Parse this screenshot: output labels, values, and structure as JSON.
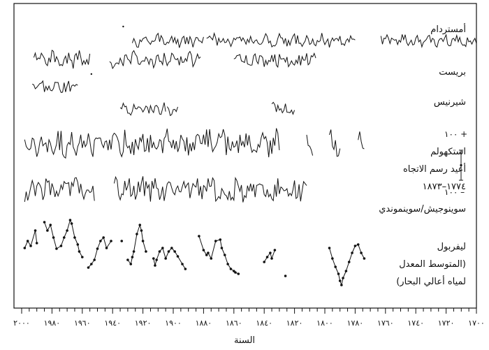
{
  "chart_data": {
    "type": "line",
    "title": "",
    "xlabel": "السنة",
    "ylabel": "",
    "xlim": [
      2000,
      1700
    ],
    "x_ticks": [
      2000,
      1980,
      1960,
      1940,
      1920,
      1900,
      1880,
      1860,
      1840,
      1820,
      1800,
      1780,
      1760,
      1740,
      1720,
      1700
    ],
    "x_tick_labels": [
      "٢٠٠٠",
      "١٩٨٠",
      "١٩٦٠",
      "١٩٤٠",
      "١٩٢٠",
      "١٩٠٠",
      "١٨٨٠",
      "١٨٦٠",
      "١٨٤٠",
      "١٨٢٠",
      "١٨٠٠",
      "١٧٨٠",
      "١٧٦٠",
      "١٧٤٠",
      "١٧٢٠",
      "١٧٠٠"
    ],
    "scale_bar": {
      "top_label": "+ ١٠٠",
      "bottom_label": "– ١٠٠",
      "range": [
        -100,
        100
      ]
    },
    "grid": false,
    "series": [
      {
        "name": "أمستردام",
        "label_lines": [
          "أمستردام"
        ],
        "style": "line",
        "amp": 8,
        "segments": [
          [
            1700,
            1763
          ],
          [
            1780,
            1878
          ],
          [
            1880,
            1927
          ]
        ],
        "isolated_points": [
          1933
        ]
      },
      {
        "name": "بريست",
        "label_lines": [
          "بريست"
        ],
        "style": "line",
        "amp": 10,
        "segments": [
          [
            1806,
            1860
          ],
          [
            1882,
            1942
          ],
          [
            1955,
            1992
          ]
        ],
        "isolated_points": []
      },
      {
        "name": "شيرنيس",
        "label_lines": [
          "شيرنيس"
        ],
        "style": "line",
        "amp": 9,
        "segments": [
          [
            1963,
            1993
          ]
        ],
        "isolated_points": [
          1954
        ]
      },
      {
        "name": "شيرنيس-2",
        "label_lines": [],
        "style": "line",
        "amp": 8,
        "segments": [
          [
            1905,
            1935
          ],
          [
            1897,
            1904
          ],
          [
            1820,
            1835
          ]
        ],
        "isolated_points": []
      },
      {
        "name": "استكهولم",
        "label_lines": [
          "استكهولم",
          "أعيد رسم الاتجاه",
          "١٧٧٤–١٨٧٣"
        ],
        "style": "line",
        "amp": 16,
        "segments": [
          [
            1830,
            1998
          ],
          [
            1808,
            1812
          ],
          [
            1790,
            1797
          ],
          [
            1774,
            1778
          ]
        ],
        "isolated_points": []
      },
      {
        "name": "سوينوجيش/سوينموندي",
        "label_lines": [
          "سوينوجيش/سوينموندي"
        ],
        "style": "line",
        "amp": 15,
        "segments": [
          [
            1812,
            1939
          ],
          [
            1952,
            1998
          ]
        ],
        "isolated_points": []
      },
      {
        "name": "ليفربول",
        "label_lines": [
          "ليفربول",
          "(المتوسط المعدل",
          "لمياه أعالي البحار)"
        ],
        "style": "dots",
        "amp": 0,
        "segments": [],
        "points": [
          [
            1998,
            355
          ],
          [
            1996,
            345
          ],
          [
            1994,
            352
          ],
          [
            1991,
            330
          ],
          [
            1990,
            348
          ],
          [
            1985,
            318
          ],
          [
            1983,
            330
          ],
          [
            1981,
            322
          ],
          [
            1979,
            340
          ],
          [
            1977,
            356
          ],
          [
            1974,
            352
          ],
          [
            1972,
            340
          ],
          [
            1970,
            330
          ],
          [
            1968,
            315
          ],
          [
            1967,
            320
          ],
          [
            1965,
            340
          ],
          [
            1963,
            350
          ],
          [
            1962,
            360
          ],
          [
            1960,
            368
          ],
          [
            1956,
            383
          ],
          [
            1954,
            378
          ],
          [
            1952,
            372
          ],
          [
            1950,
            356
          ],
          [
            1948,
            345
          ],
          [
            1946,
            340
          ],
          [
            1944,
            355
          ],
          [
            1941,
            345
          ],
          [
            1934,
            345
          ],
          [
            1930,
            372
          ],
          [
            1928,
            378
          ],
          [
            1927,
            368
          ],
          [
            1926,
            360
          ],
          [
            1924,
            335
          ],
          [
            1922,
            322
          ],
          [
            1921,
            330
          ],
          [
            1920,
            345
          ],
          [
            1918,
            360
          ],
          [
            1913,
            370
          ],
          [
            1912,
            380
          ],
          [
            1911,
            372
          ],
          [
            1909,
            360
          ],
          [
            1907,
            355
          ],
          [
            1905,
            370
          ],
          [
            1903,
            360
          ],
          [
            1901,
            355
          ],
          [
            1899,
            360
          ],
          [
            1897,
            367
          ],
          [
            1894,
            378
          ],
          [
            1892,
            385
          ],
          [
            1883,
            338
          ],
          [
            1880,
            358
          ],
          [
            1878,
            365
          ],
          [
            1877,
            362
          ],
          [
            1875,
            370
          ],
          [
            1872,
            345
          ],
          [
            1869,
            343
          ],
          [
            1868,
            355
          ],
          [
            1866,
            365
          ],
          [
            1864,
            378
          ],
          [
            1862,
            385
          ],
          [
            1860,
            388
          ],
          [
            1859,
            390
          ],
          [
            1857,
            392
          ],
          [
            1840,
            375
          ],
          [
            1838,
            368
          ],
          [
            1836,
            362
          ],
          [
            1835,
            370
          ],
          [
            1833,
            358
          ],
          [
            1826,
            395
          ],
          [
            1797,
            355
          ],
          [
            1795,
            370
          ],
          [
            1793,
            382
          ],
          [
            1791,
            392
          ],
          [
            1790,
            402
          ],
          [
            1789,
            408
          ],
          [
            1788,
            398
          ],
          [
            1786,
            388
          ],
          [
            1784,
            375
          ],
          [
            1782,
            362
          ],
          [
            1780,
            352
          ],
          [
            1778,
            350
          ],
          [
            1776,
            362
          ],
          [
            1774,
            370
          ]
        ],
        "isolated_points": []
      }
    ]
  }
}
